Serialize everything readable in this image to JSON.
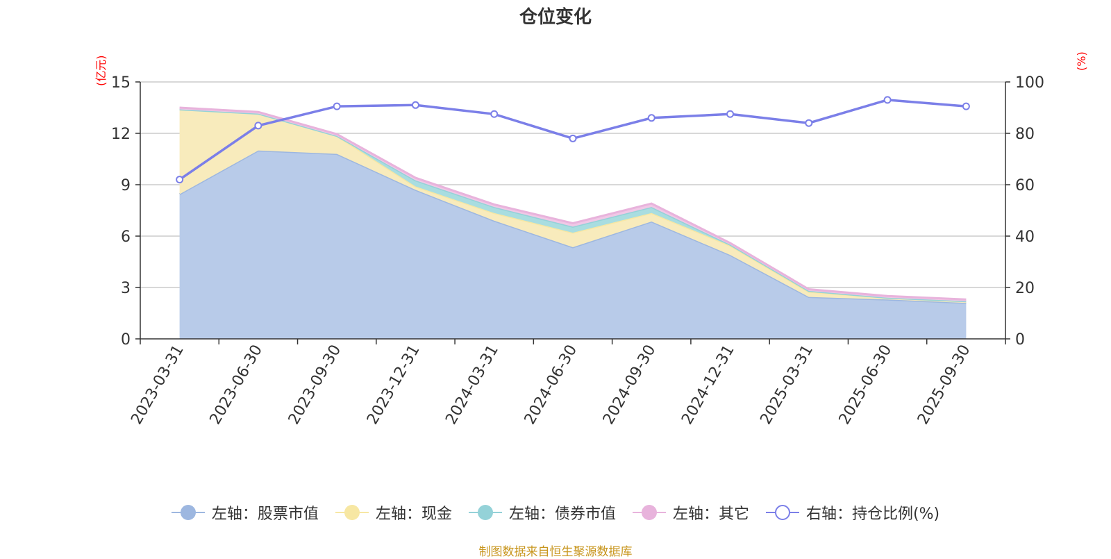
{
  "chart_data": {
    "type": "area",
    "title": "仓位变化",
    "left_axis_unit": "(亿元)",
    "right_axis_unit": "(%)",
    "categories": [
      "2023-03-31",
      "2023-06-30",
      "2023-09-30",
      "2023-12-31",
      "2024-03-31",
      "2024-06-30",
      "2024-09-30",
      "2024-12-31",
      "2025-03-31",
      "2025-06-30",
      "2025-09-30"
    ],
    "ylim_left": [
      0,
      15
    ],
    "yticks_left": [
      0,
      3,
      6,
      9,
      12,
      15
    ],
    "ylim_right": [
      0,
      100
    ],
    "yticks_right": [
      0,
      20,
      40,
      60,
      80,
      100
    ],
    "grid": true,
    "legend_position": "bottom",
    "series": [
      {
        "name": "左轴：股票市值",
        "axis": "left",
        "stack": true,
        "color": "#9db7e0",
        "fill": "#b8cbe9",
        "values": [
          8.45,
          11.0,
          10.8,
          8.7,
          6.9,
          5.35,
          6.85,
          4.9,
          2.45,
          2.3,
          2.1
        ]
      },
      {
        "name": "左轴：现金",
        "axis": "left",
        "stack": true,
        "color": "#f7e7a3",
        "fill": "#f8ebbc",
        "values": [
          4.95,
          2.15,
          1.05,
          0.2,
          0.45,
          0.85,
          0.5,
          0.55,
          0.3,
          0.1,
          0.1
        ]
      },
      {
        "name": "左轴：债券市值",
        "axis": "left",
        "stack": true,
        "color": "#94d2d8",
        "fill": "#a9dde0",
        "values": [
          0.0,
          0.0,
          0.0,
          0.35,
          0.35,
          0.35,
          0.35,
          0.05,
          0.05,
          0.0,
          0.0
        ]
      },
      {
        "name": "左轴：其它",
        "axis": "left",
        "stack": true,
        "color": "#e8b3dc",
        "fill": "#f0c8e6",
        "values": [
          0.1,
          0.1,
          0.1,
          0.15,
          0.15,
          0.2,
          0.2,
          0.1,
          0.1,
          0.1,
          0.1
        ]
      },
      {
        "name": "右轴：持仓比例(%)",
        "axis": "right",
        "type": "line",
        "color": "#7b7fe8",
        "values": [
          62.0,
          83.0,
          90.5,
          91.0,
          87.5,
          78.0,
          86.0,
          87.5,
          84.0,
          93.0,
          90.5
        ]
      }
    ]
  },
  "source_note": "制图数据来自恒生聚源数据库"
}
